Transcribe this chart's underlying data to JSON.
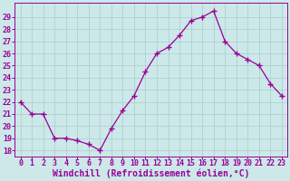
{
  "x": [
    0,
    1,
    2,
    3,
    4,
    5,
    6,
    7,
    8,
    9,
    10,
    11,
    12,
    13,
    14,
    15,
    16,
    17,
    18,
    19,
    20,
    21,
    22,
    23
  ],
  "y": [
    22,
    21,
    21,
    19,
    19,
    18.8,
    18.5,
    18,
    19.8,
    21.3,
    22.5,
    24.5,
    26,
    26.5,
    27.5,
    28.7,
    29,
    29.5,
    27,
    26,
    25.5,
    25,
    23.5,
    22.5
  ],
  "line_color": "#990099",
  "marker": "+",
  "marker_size": 4,
  "bg_color": "#cce8e8",
  "grid_color": "#aacccc",
  "xlabel": "Windchill (Refroidissement éolien,°C)",
  "xlabel_color": "#990099",
  "xlabel_fontsize": 7,
  "tick_color": "#990099",
  "tick_fontsize": 6,
  "ytick_labels": [
    "18",
    "19",
    "20",
    "21",
    "22",
    "23",
    "24",
    "25",
    "26",
    "27",
    "28",
    "29"
  ],
  "ytick_values": [
    18,
    19,
    20,
    21,
    22,
    23,
    24,
    25,
    26,
    27,
    28,
    29
  ],
  "xtick_values": [
    0,
    1,
    2,
    3,
    4,
    5,
    6,
    7,
    8,
    9,
    10,
    11,
    12,
    13,
    14,
    15,
    16,
    17,
    18,
    19,
    20,
    21,
    22,
    23
  ],
  "ylim": [
    17.5,
    30.2
  ],
  "xlim": [
    -0.5,
    23.5
  ],
  "spine_color": "#990099"
}
